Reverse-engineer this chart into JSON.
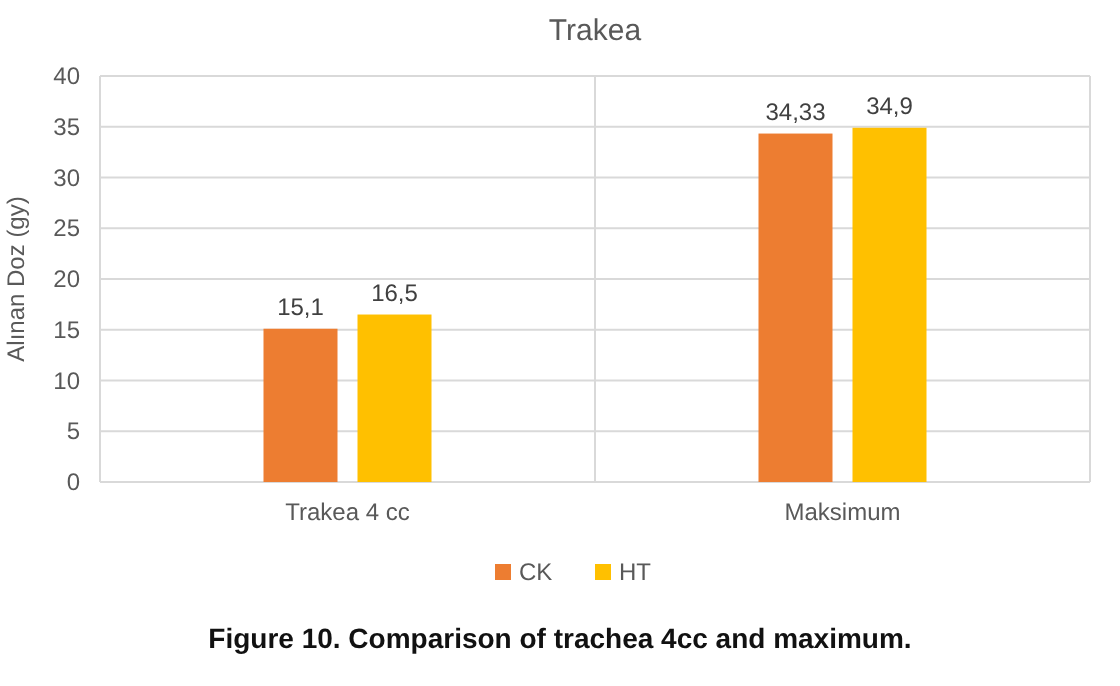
{
  "chart_data": {
    "type": "bar",
    "title": "Trakea",
    "ylabel": "Alınan Doz (gy)",
    "categories": [
      "Trakea 4 cc",
      "Maksimum"
    ],
    "series": [
      {
        "name": "CK",
        "color": "#ed7d31",
        "values": [
          15.1,
          34.33
        ],
        "value_labels": [
          "15,1",
          "34,33"
        ]
      },
      {
        "name": "HT",
        "color": "#ffc000",
        "values": [
          16.5,
          34.9
        ],
        "value_labels": [
          "16,5",
          "34,9"
        ]
      }
    ],
    "ylim": [
      0,
      40
    ],
    "yticks": [
      0,
      5,
      10,
      15,
      20,
      25,
      30,
      35,
      40
    ],
    "grid": true,
    "legend": "bottom",
    "annotations": [
      "Figure 10. Comparison of trachea 4cc and maximum."
    ]
  }
}
